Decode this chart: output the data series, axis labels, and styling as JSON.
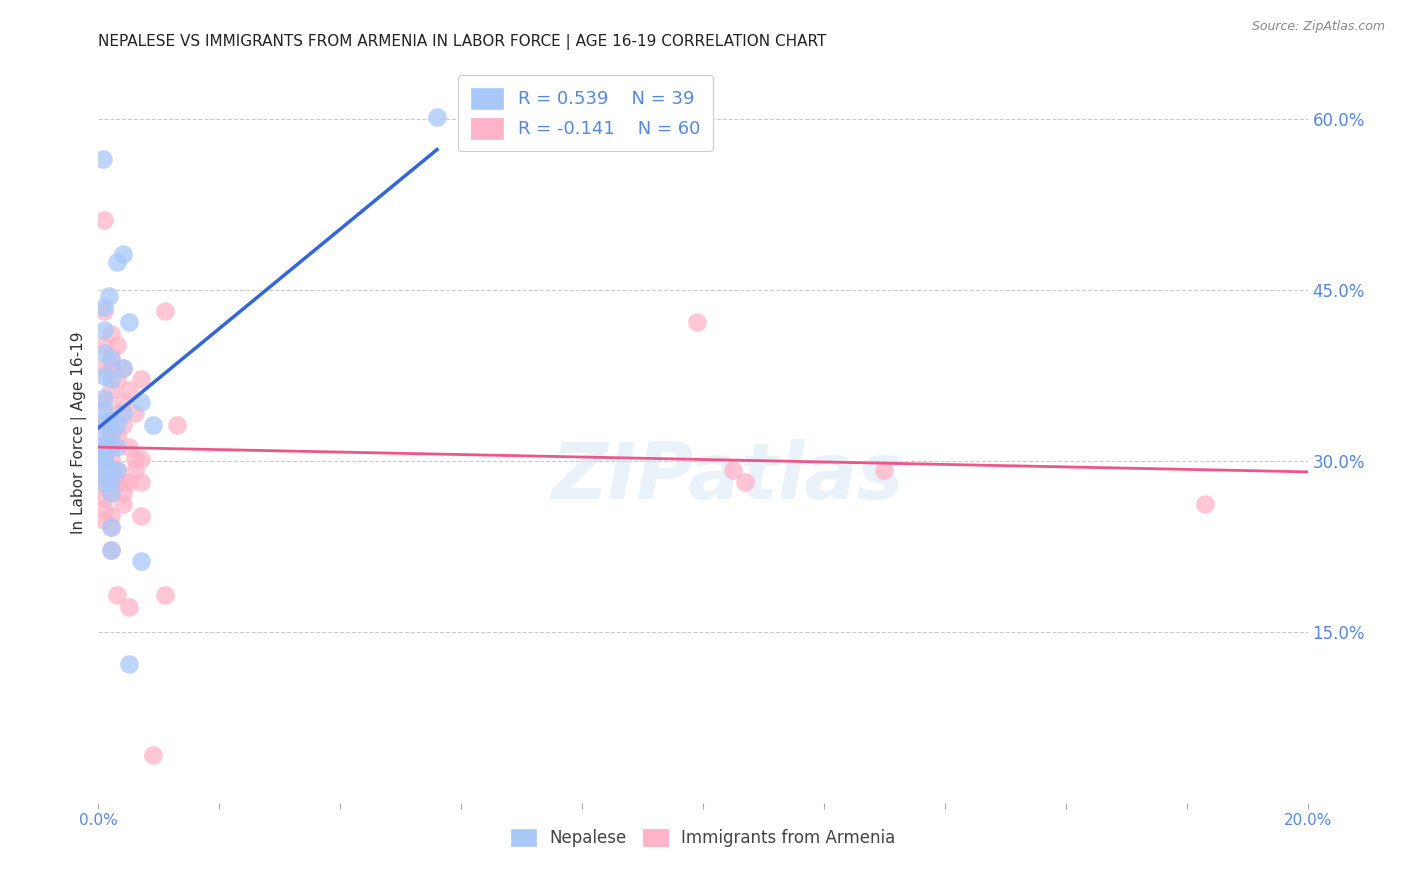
{
  "title": "NEPALESE VS IMMIGRANTS FROM ARMENIA IN LABOR FORCE | AGE 16-19 CORRELATION CHART",
  "source": "Source: ZipAtlas.com",
  "ylabel": "In Labor Force | Age 16-19",
  "xlim": [
    0.0,
    0.2
  ],
  "ylim": [
    0.0,
    0.65
  ],
  "xticks": [
    0.0,
    0.02,
    0.04,
    0.06,
    0.08,
    0.1,
    0.12,
    0.14,
    0.16,
    0.18,
    0.2
  ],
  "xticklabels": [
    "0.0%",
    "",
    "",
    "",
    "",
    "",
    "",
    "",
    "",
    "",
    "20.0%"
  ],
  "yticks_right": [
    0.15,
    0.3,
    0.45,
    0.6
  ],
  "ytick_right_labels": [
    "15.0%",
    "30.0%",
    "45.0%",
    "60.0%"
  ],
  "watermark": "ZIPatlas",
  "nepalese_color": "#A8C8FA",
  "armenia_color": "#FFB3C8",
  "nepalese_line_color": "#3366DD",
  "armenia_line_color": "#EE5588",
  "nepalese_R": 0.539,
  "nepalese_N": 39,
  "armenia_R": -0.141,
  "armenia_N": 60,
  "legend_nepalese_color": "#A8C8FA",
  "legend_armenia_color": "#FFB3C8",
  "nepalese_points": [
    [
      0.0008,
      0.565
    ],
    [
      0.001,
      0.435
    ],
    [
      0.001,
      0.415
    ],
    [
      0.001,
      0.395
    ],
    [
      0.001,
      0.375
    ],
    [
      0.001,
      0.355
    ],
    [
      0.001,
      0.345
    ],
    [
      0.001,
      0.335
    ],
    [
      0.001,
      0.325
    ],
    [
      0.001,
      0.315
    ],
    [
      0.001,
      0.31
    ],
    [
      0.001,
      0.302
    ],
    [
      0.001,
      0.298
    ],
    [
      0.001,
      0.29
    ],
    [
      0.001,
      0.282
    ],
    [
      0.0018,
      0.445
    ],
    [
      0.002,
      0.39
    ],
    [
      0.002,
      0.372
    ],
    [
      0.002,
      0.335
    ],
    [
      0.002,
      0.325
    ],
    [
      0.002,
      0.312
    ],
    [
      0.002,
      0.292
    ],
    [
      0.002,
      0.282
    ],
    [
      0.002,
      0.272
    ],
    [
      0.002,
      0.242
    ],
    [
      0.002,
      0.222
    ],
    [
      0.003,
      0.475
    ],
    [
      0.003,
      0.332
    ],
    [
      0.003,
      0.312
    ],
    [
      0.003,
      0.292
    ],
    [
      0.004,
      0.482
    ],
    [
      0.004,
      0.382
    ],
    [
      0.004,
      0.342
    ],
    [
      0.005,
      0.422
    ],
    [
      0.005,
      0.122
    ],
    [
      0.007,
      0.352
    ],
    [
      0.007,
      0.212
    ],
    [
      0.009,
      0.332
    ],
    [
      0.056,
      0.602
    ]
  ],
  "armenia_points": [
    [
      0.001,
      0.512
    ],
    [
      0.001,
      0.432
    ],
    [
      0.001,
      0.402
    ],
    [
      0.001,
      0.382
    ],
    [
      0.001,
      0.352
    ],
    [
      0.001,
      0.332
    ],
    [
      0.001,
      0.312
    ],
    [
      0.001,
      0.302
    ],
    [
      0.001,
      0.298
    ],
    [
      0.001,
      0.288
    ],
    [
      0.001,
      0.278
    ],
    [
      0.001,
      0.268
    ],
    [
      0.001,
      0.258
    ],
    [
      0.001,
      0.248
    ],
    [
      0.002,
      0.412
    ],
    [
      0.002,
      0.392
    ],
    [
      0.002,
      0.382
    ],
    [
      0.002,
      0.362
    ],
    [
      0.002,
      0.332
    ],
    [
      0.002,
      0.322
    ],
    [
      0.002,
      0.312
    ],
    [
      0.002,
      0.302
    ],
    [
      0.002,
      0.292
    ],
    [
      0.002,
      0.272
    ],
    [
      0.002,
      0.252
    ],
    [
      0.002,
      0.242
    ],
    [
      0.002,
      0.222
    ],
    [
      0.003,
      0.402
    ],
    [
      0.003,
      0.372
    ],
    [
      0.003,
      0.342
    ],
    [
      0.003,
      0.322
    ],
    [
      0.003,
      0.292
    ],
    [
      0.003,
      0.282
    ],
    [
      0.003,
      0.182
    ],
    [
      0.004,
      0.382
    ],
    [
      0.004,
      0.352
    ],
    [
      0.004,
      0.332
    ],
    [
      0.004,
      0.282
    ],
    [
      0.004,
      0.272
    ],
    [
      0.004,
      0.262
    ],
    [
      0.005,
      0.362
    ],
    [
      0.005,
      0.312
    ],
    [
      0.005,
      0.282
    ],
    [
      0.005,
      0.172
    ],
    [
      0.006,
      0.342
    ],
    [
      0.006,
      0.302
    ],
    [
      0.006,
      0.292
    ],
    [
      0.007,
      0.372
    ],
    [
      0.007,
      0.302
    ],
    [
      0.007,
      0.282
    ],
    [
      0.007,
      0.252
    ],
    [
      0.009,
      0.042
    ],
    [
      0.011,
      0.432
    ],
    [
      0.011,
      0.182
    ],
    [
      0.013,
      0.332
    ],
    [
      0.099,
      0.422
    ],
    [
      0.105,
      0.292
    ],
    [
      0.107,
      0.282
    ],
    [
      0.13,
      0.292
    ],
    [
      0.183,
      0.262
    ]
  ],
  "grid_color": "#CCCCCC",
  "background_color": "#FFFFFF",
  "title_fontsize": 11,
  "tick_label_color": "#5588DD"
}
